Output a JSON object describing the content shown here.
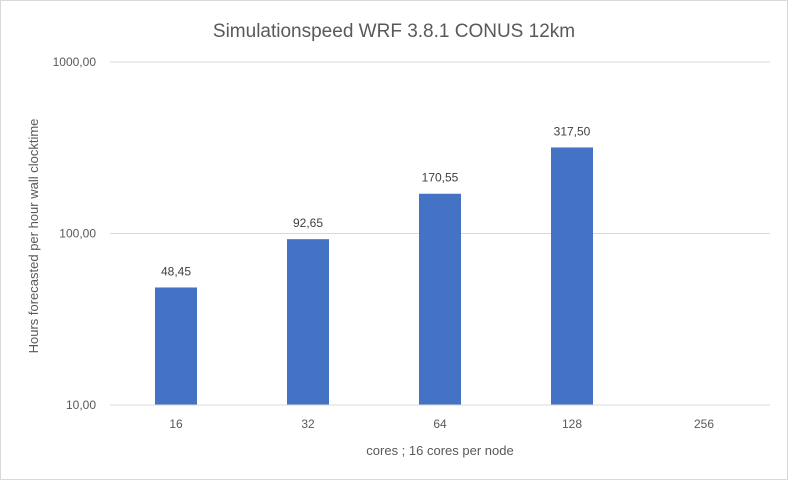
{
  "chart_data": {
    "type": "bar",
    "title": "Simulationspeed WRF 3.8.1 CONUS 12km",
    "xlabel": "cores ; 16 cores per node",
    "ylabel": "Hours forecasted per hour wall clocktime",
    "categories": [
      "16",
      "32",
      "64",
      "128",
      "256"
    ],
    "values": [
      48.45,
      92.65,
      170.55,
      317.5,
      null
    ],
    "data_labels": [
      "48,45",
      "92,65",
      "170,55",
      "317,50",
      ""
    ],
    "y_scale": "log",
    "ylim": [
      10,
      1000
    ],
    "y_ticks": [
      10,
      100,
      1000
    ],
    "y_tick_labels": [
      "10,00",
      "100,00",
      "1000,00"
    ],
    "grid": true,
    "legend": "none",
    "bar_color": "#4472c4",
    "grid_color": "#d9d9d9"
  }
}
